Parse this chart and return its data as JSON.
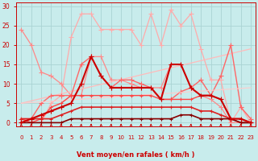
{
  "xlabel": "Vent moyen/en rafales ( km/h )",
  "bg_color": "#c8ecec",
  "grid_color": "#aad4d4",
  "x_ticks": [
    0,
    1,
    2,
    3,
    4,
    5,
    6,
    7,
    8,
    9,
    10,
    11,
    12,
    13,
    14,
    15,
    16,
    17,
    18,
    19,
    20,
    21,
    22,
    23
  ],
  "y_ticks": [
    0,
    5,
    10,
    15,
    20,
    25,
    30
  ],
  "ylim": [
    -1,
    31
  ],
  "xlim": [
    -0.5,
    23.5
  ],
  "lines": [
    {
      "x": [
        0,
        1,
        2,
        3,
        4,
        5,
        6,
        7,
        8,
        9,
        10,
        11,
        12,
        13,
        14,
        15,
        16,
        17,
        18,
        19,
        20,
        21,
        22,
        23
      ],
      "y": [
        0,
        0,
        0,
        5,
        7,
        22,
        28,
        28,
        24,
        24,
        24,
        24,
        20,
        28,
        20,
        29,
        25,
        28,
        19,
        11,
        11,
        0,
        4,
        0
      ],
      "color": "#ffaaaa",
      "lw": 0.9,
      "marker": "+",
      "ms": 4
    },
    {
      "x": [
        0,
        1,
        2,
        3,
        4,
        5,
        6,
        7,
        8,
        9,
        10,
        11,
        12,
        13,
        14,
        15,
        16,
        17,
        18,
        19,
        20,
        21,
        22,
        23
      ],
      "y": [
        24,
        20,
        13,
        12,
        10,
        7,
        7,
        17,
        17,
        11,
        11,
        10,
        9,
        9,
        9,
        15,
        15,
        9,
        7,
        6,
        4,
        0,
        0,
        0
      ],
      "color": "#ff8888",
      "lw": 0.9,
      "marker": "+",
      "ms": 4
    },
    {
      "x": [
        0,
        23
      ],
      "y": [
        5,
        19
      ],
      "color": "#ffbbbb",
      "lw": 0.9,
      "marker": null,
      "ms": 0
    },
    {
      "x": [
        0,
        1,
        2,
        3,
        4,
        5,
        6,
        7,
        8,
        9,
        10,
        11,
        12,
        13,
        14,
        15,
        16,
        17,
        18,
        19,
        20,
        21,
        22,
        23
      ],
      "y": [
        1,
        1,
        5,
        7,
        7,
        7,
        15,
        17,
        12,
        9,
        11,
        11,
        10,
        9,
        6,
        6,
        8,
        9,
        11,
        7,
        12,
        20,
        4,
        1
      ],
      "color": "#ff6666",
      "lw": 1.0,
      "marker": "+",
      "ms": 4
    },
    {
      "x": [
        0,
        23
      ],
      "y": [
        5,
        9
      ],
      "color": "#ffcccc",
      "lw": 0.8,
      "marker": null,
      "ms": 0
    },
    {
      "x": [
        0,
        1,
        2,
        3,
        4,
        5,
        6,
        7,
        8,
        9,
        10,
        11,
        12,
        13,
        14,
        15,
        16,
        17,
        18,
        19,
        20,
        21,
        22,
        23
      ],
      "y": [
        1,
        0,
        1,
        4,
        5,
        7,
        7,
        7,
        7,
        7,
        7,
        7,
        7,
        7,
        6,
        6,
        6,
        6,
        7,
        7,
        6,
        1,
        1,
        0
      ],
      "color": "#ff4444",
      "lw": 1.0,
      "marker": "+",
      "ms": 3.5
    },
    {
      "x": [
        0,
        1,
        2,
        3,
        4,
        5,
        6,
        7,
        8,
        9,
        10,
        11,
        12,
        13,
        14,
        15,
        16,
        17,
        18,
        19,
        20,
        21,
        22,
        23
      ],
      "y": [
        1,
        1,
        1,
        1,
        2,
        3,
        4,
        4,
        4,
        4,
        4,
        4,
        4,
        4,
        4,
        4,
        4,
        4,
        3,
        3,
        2,
        1,
        0,
        0
      ],
      "color": "#dd2222",
      "lw": 1.2,
      "marker": "+",
      "ms": 3
    },
    {
      "x": [
        0,
        1,
        2,
        3,
        4,
        5,
        6,
        7,
        8,
        9,
        10,
        11,
        12,
        13,
        14,
        15,
        16,
        17,
        18,
        19,
        20,
        21,
        22,
        23
      ],
      "y": [
        0,
        0,
        0,
        0,
        0,
        1,
        1,
        1,
        1,
        1,
        1,
        1,
        1,
        1,
        1,
        1,
        2,
        2,
        1,
        1,
        1,
        1,
        0,
        0
      ],
      "color": "#880000",
      "lw": 1.2,
      "marker": "+",
      "ms": 3
    },
    {
      "x": [
        0,
        1,
        2,
        3,
        4,
        5,
        6,
        7,
        8,
        9,
        10,
        11,
        12,
        13,
        14,
        15,
        16,
        17,
        18,
        19,
        20,
        21,
        22,
        23
      ],
      "y": [
        0,
        1,
        2,
        3,
        4,
        5,
        10,
        17,
        12,
        9,
        9,
        9,
        9,
        9,
        6,
        15,
        15,
        9,
        7,
        7,
        6,
        1,
        1,
        0
      ],
      "color": "#cc0000",
      "lw": 1.5,
      "marker": "+",
      "ms": 4
    }
  ],
  "arrow_color": "#cc0000",
  "tick_color": "#cc0000",
  "label_color": "#cc0000"
}
